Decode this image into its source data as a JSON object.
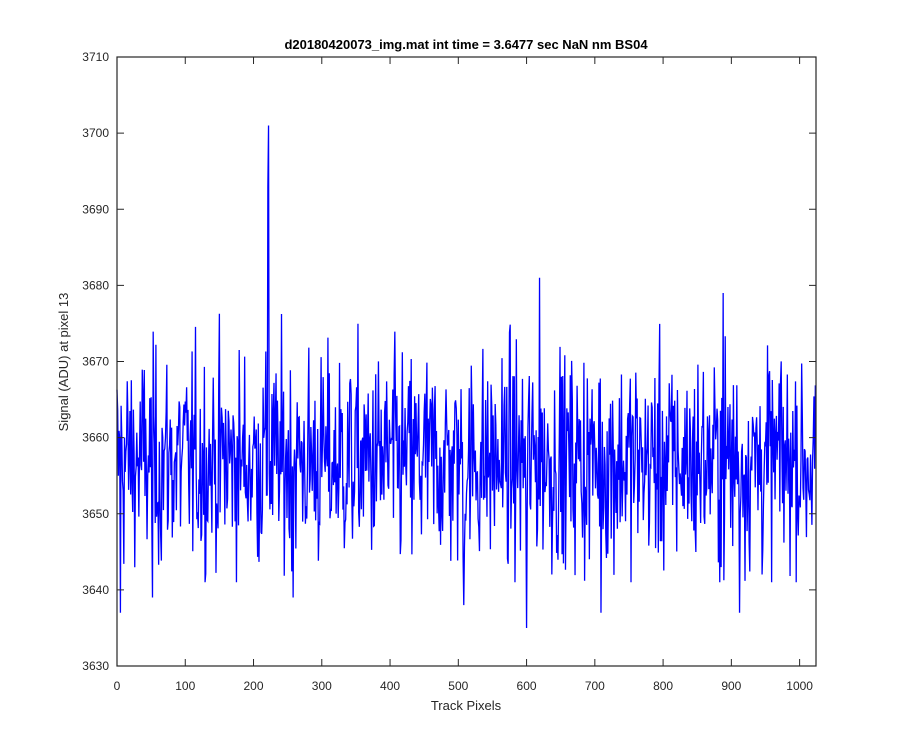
{
  "chart_data": {
    "type": "line",
    "title": "d20180420073_img.mat int time = 3.6477 sec  NaN nm BS04",
    "xlabel": "Track Pixels",
    "ylabel": "Signal (ADU) at pixel 13",
    "xlim": [
      0,
      1024
    ],
    "ylim": [
      3630,
      3710
    ],
    "xticks": [
      0,
      100,
      200,
      300,
      400,
      500,
      600,
      700,
      800,
      900,
      1000
    ],
    "yticks": [
      3630,
      3640,
      3650,
      3660,
      3670,
      3680,
      3690,
      3700,
      3710
    ],
    "grid": false,
    "series": [
      {
        "color": "#0000ff",
        "description": "1024 noisy samples around a baseline of ~3657 ADU",
        "baseline": 3657,
        "points_count": 1024,
        "features": [
          {
            "x": 5,
            "y": 3637
          },
          {
            "x": 52,
            "y": 3639
          },
          {
            "x": 222,
            "y": 3701
          },
          {
            "x": 221,
            "y": 3693
          },
          {
            "x": 258,
            "y": 3639
          },
          {
            "x": 508,
            "y": 3638
          },
          {
            "x": 600,
            "y": 3635
          },
          {
            "x": 619,
            "y": 3681
          },
          {
            "x": 709,
            "y": 3637
          },
          {
            "x": 888,
            "y": 3679
          },
          {
            "x": 912,
            "y": 3637
          }
        ]
      }
    ]
  }
}
